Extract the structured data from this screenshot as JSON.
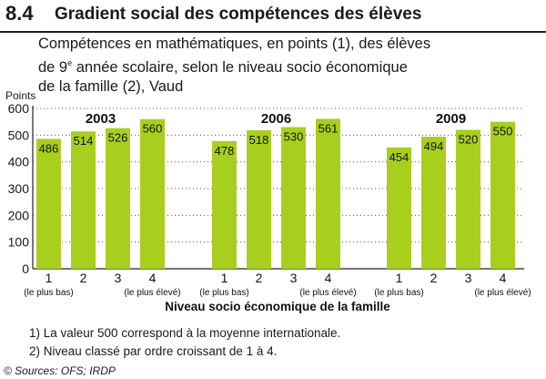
{
  "header": {
    "number": "8.4",
    "title": "Gradient social des compétences des élèves"
  },
  "subtitle": {
    "line1": "Compétences en mathématiques, en points (1), des élèves",
    "line2_pre": "de 9",
    "line2_sup": "e",
    "line2_post": " année scolaire, selon le niveau socio économique",
    "line3": "de la famille (2), Vaud"
  },
  "chart_data": {
    "type": "bar",
    "ylabel": "Points",
    "ylim": [
      0,
      600
    ],
    "yticks": [
      0,
      100,
      200,
      300,
      400,
      500,
      600
    ],
    "grid": true,
    "categories": [
      "1",
      "2",
      "3",
      "4"
    ],
    "category_sublabels": [
      "(le plus bas)",
      "",
      "",
      "(le plus élevé)"
    ],
    "xlabel": "Niveau socio économique de la famille",
    "bar_color": "#a8cf1e",
    "groups": [
      {
        "name": "2003",
        "values": [
          486,
          514,
          526,
          560
        ]
      },
      {
        "name": "2006",
        "values": [
          478,
          518,
          530,
          561
        ]
      },
      {
        "name": "2009",
        "values": [
          454,
          494,
          520,
          550
        ]
      }
    ]
  },
  "notes": [
    "1) La valeur 500 correspond à la moyenne internationale.",
    "2) Niveau classé par ordre croissant de 1 à 4."
  ],
  "source": "© Sources: OFS; IRDP"
}
